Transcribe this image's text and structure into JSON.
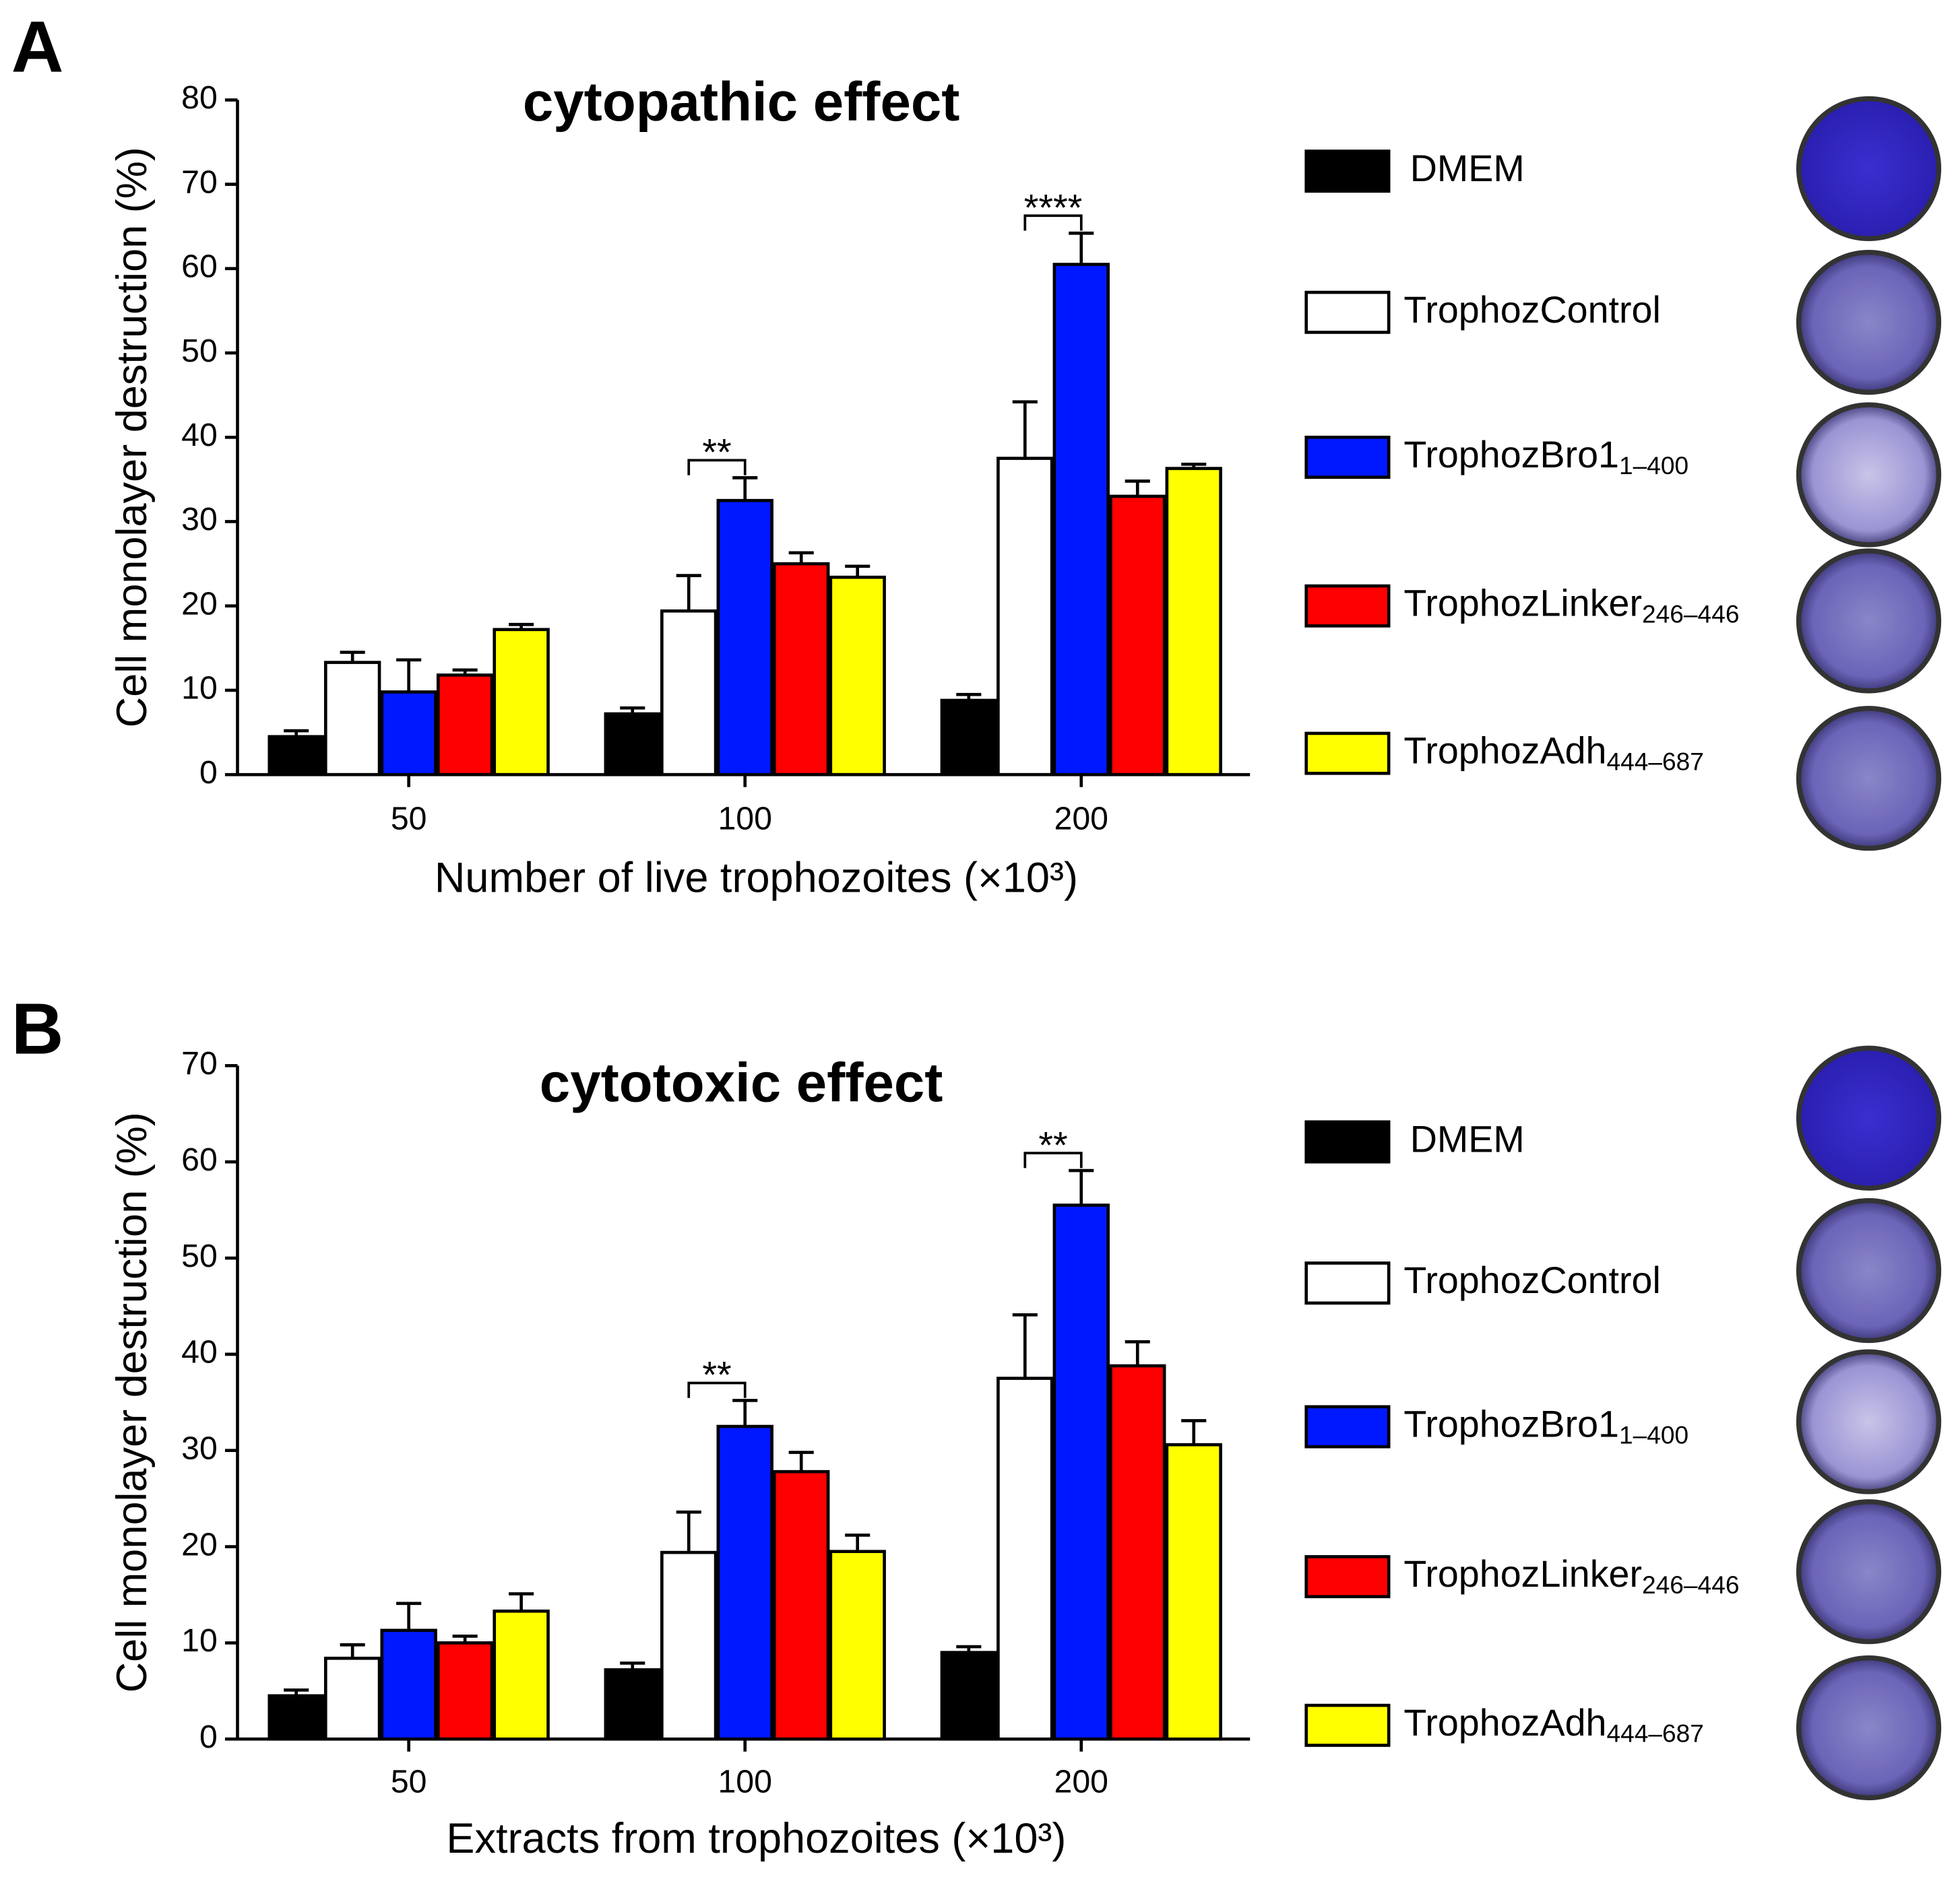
{
  "panels": [
    "A",
    "B"
  ],
  "chart_data": [
    {
      "type": "bar",
      "title": "cytopathic effect",
      "ylabel": "Cell monolayer destruction (%)",
      "xlabel": "Number of live trophozoites (×10³)",
      "categories": [
        "50",
        "100",
        "200"
      ],
      "ylim": [
        0,
        80
      ],
      "yticks": [
        0,
        10,
        20,
        30,
        40,
        50,
        60,
        70,
        80
      ],
      "series": [
        {
          "name": "DMEM",
          "color": "#000000",
          "values": [
            4.5,
            7.2,
            8.8
          ],
          "errors": [
            0.7,
            0.7,
            0.7
          ]
        },
        {
          "name": "TrophozControl",
          "color": "#ffffff",
          "values": [
            13.3,
            19.4,
            37.5
          ],
          "errors": [
            1.2,
            4.2,
            6.7
          ]
        },
        {
          "name": "TrophozBro1",
          "subscript": "1–400",
          "color": "#0018ff",
          "values": [
            9.8,
            32.5,
            60.5
          ],
          "errors": [
            3.8,
            2.7,
            3.7
          ]
        },
        {
          "name": "TrophozLinker",
          "subscript": "246–446",
          "color": "#ff0000",
          "values": [
            11.8,
            25,
            33
          ],
          "errors": [
            0.6,
            1.3,
            1.8
          ]
        },
        {
          "name": "TrophozAdh",
          "subscript": "444–687",
          "color": "#ffff00",
          "values": [
            17.2,
            23.4,
            36.3
          ],
          "errors": [
            0.6,
            1.3,
            0.5
          ]
        }
      ],
      "annotations": [
        {
          "text": "**",
          "category": "100"
        },
        {
          "text": "****",
          "category": "200"
        }
      ]
    },
    {
      "type": "bar",
      "title": "cytotoxic effect",
      "ylabel": "Cell monolayer destruction (%)",
      "xlabel": "Extracts from trophozoites (×10³)",
      "categories": [
        "50",
        "100",
        "200"
      ],
      "ylim": [
        0,
        70
      ],
      "yticks": [
        0,
        10,
        20,
        30,
        40,
        50,
        60,
        70
      ],
      "series": [
        {
          "name": "DMEM",
          "color": "#000000",
          "values": [
            4.5,
            7.2,
            9
          ],
          "errors": [
            0.6,
            0.7,
            0.6
          ]
        },
        {
          "name": "TrophozControl",
          "color": "#ffffff",
          "values": [
            8.4,
            19.4,
            37.5
          ],
          "errors": [
            1.4,
            4.2,
            6.6
          ]
        },
        {
          "name": "TrophozBro1",
          "subscript": "1–400",
          "color": "#0018ff",
          "values": [
            11.3,
            32.5,
            55.5
          ],
          "errors": [
            2.8,
            2.7,
            3.6
          ]
        },
        {
          "name": "TrophozLinker",
          "subscript": "246–446",
          "color": "#ff0000",
          "values": [
            10,
            27.8,
            38.8
          ],
          "errors": [
            0.7,
            2,
            2.5
          ]
        },
        {
          "name": "TrophozAdh",
          "subscript": "444–687",
          "color": "#ffff00",
          "values": [
            13.3,
            19.5,
            30.6
          ],
          "errors": [
            1.8,
            1.7,
            2.5
          ]
        }
      ],
      "annotations": [
        {
          "text": "**",
          "category": "100"
        },
        {
          "text": "**",
          "category": "200"
        }
      ]
    }
  ]
}
